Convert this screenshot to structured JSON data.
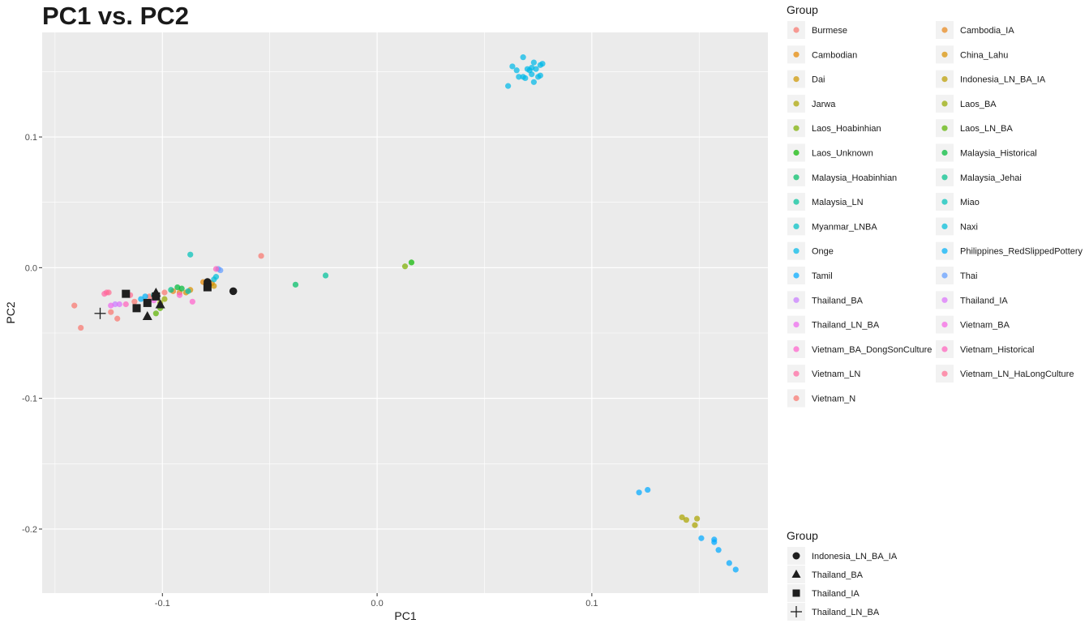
{
  "chart_data": {
    "type": "scatter",
    "title": "PC1 vs. PC2",
    "xlabel": "PC1",
    "ylabel": "PC2",
    "xlim": [
      -0.156,
      0.182
    ],
    "ylim": [
      -0.249,
      0.18
    ],
    "x_ticks": [
      -0.1,
      0.0,
      0.1
    ],
    "x_tick_labels": [
      "-0.1",
      "0.0",
      "0.1"
    ],
    "y_ticks": [
      -0.2,
      -0.1,
      0.0,
      0.1
    ],
    "y_tick_labels": [
      "-0.2",
      "-0.1",
      "0.0",
      "0.1"
    ],
    "x_minor": [
      -0.15,
      -0.05,
      0.05,
      0.15
    ],
    "y_minor": [
      -0.15,
      -0.05,
      0.05,
      0.15
    ],
    "panel_background": "#ebebeb",
    "grid_color": "#ffffff",
    "legend_color": {
      "title": "Group",
      "placement": "right",
      "columns": [
        [
          {
            "label": "Burmese",
            "color": "#F8766D"
          },
          {
            "label": "Cambodian",
            "color": "#E58700"
          },
          {
            "label": "Dai",
            "color": "#CD9600"
          },
          {
            "label": "Jarwa",
            "color": "#ABA300"
          },
          {
            "label": "Laos_Hoabinhian",
            "color": "#7CAE00"
          },
          {
            "label": "Laos_Unknown",
            "color": "#0CB702"
          },
          {
            "label": "Malaysia_Hoabinhian",
            "color": "#00BE67"
          },
          {
            "label": "Malaysia_LN",
            "color": "#00C19A"
          },
          {
            "label": "Myanmar_LNBA",
            "color": "#00BFC4"
          },
          {
            "label": "Onge",
            "color": "#00B8E7"
          },
          {
            "label": "Tamil",
            "color": "#00A9FF"
          },
          {
            "label": "Thailand_BA",
            "color": "#C77CFF"
          },
          {
            "label": "Thailand_LN_BA",
            "color": "#ED68ED"
          },
          {
            "label": "Vietnam_BA_DongSonCulture",
            "color": "#FF61CC"
          },
          {
            "label": "Vietnam_LN",
            "color": "#FF68A1"
          },
          {
            "label": "Vietnam_N",
            "color": "#F8766D"
          }
        ],
        [
          {
            "label": "Cambodia_IA",
            "color": "#E7861B"
          },
          {
            "label": "China_Lahu",
            "color": "#D89000"
          },
          {
            "label": "Indonesia_LN_BA_IA",
            "color": "#BB9D00"
          },
          {
            "label": "Laos_BA",
            "color": "#95A900"
          },
          {
            "label": "Laos_LN_BA",
            "color": "#5BB300"
          },
          {
            "label": "Malaysia_Historical",
            "color": "#00BA38"
          },
          {
            "label": "Malaysia_Jehai",
            "color": "#00C08B"
          },
          {
            "label": "Miao",
            "color": "#00C0B8"
          },
          {
            "label": "Naxi",
            "color": "#00BCD8"
          },
          {
            "label": "Philippines_RedSlippedPottery",
            "color": "#00B0F6"
          },
          {
            "label": "Thai",
            "color": "#619CFF"
          },
          {
            "label": "Thailand_IA",
            "color": "#DB72FB"
          },
          {
            "label": "Vietnam_BA",
            "color": "#F564E3"
          },
          {
            "label": "Vietnam_Historical",
            "color": "#FF62BC"
          },
          {
            "label": "Vietnam_LN_HaLongCulture",
            "color": "#FF6C91"
          }
        ]
      ]
    },
    "legend_shape": {
      "title": "Group",
      "placement": "bottom-right",
      "items": [
        {
          "label": "Indonesia_LN_BA_IA",
          "shape": "circle"
        },
        {
          "label": "Thailand_BA",
          "shape": "triangle"
        },
        {
          "label": "Thailand_IA",
          "shape": "square"
        },
        {
          "label": "Thailand_LN_BA",
          "shape": "cross"
        }
      ]
    },
    "series": [
      {
        "name": "Vietnam_N",
        "color": "#F8766D",
        "points": [
          [
            -0.141,
            -0.029
          ],
          [
            -0.138,
            -0.046
          ],
          [
            -0.124,
            -0.034
          ],
          [
            -0.121,
            -0.039
          ],
          [
            -0.054,
            0.009
          ]
        ]
      },
      {
        "name": "Burmese",
        "color": "#F8766D",
        "points": [
          [
            -0.113,
            -0.026
          ],
          [
            -0.106,
            -0.022
          ],
          [
            -0.099,
            -0.019
          ]
        ]
      },
      {
        "name": "Cambodia_IA",
        "color": "#E7861B",
        "points": [
          [
            -0.095,
            -0.018
          ],
          [
            -0.092,
            -0.019
          ]
        ]
      },
      {
        "name": "Cambodian",
        "color": "#E58700",
        "points": [
          [
            -0.081,
            -0.011
          ],
          [
            -0.077,
            -0.012
          ]
        ]
      },
      {
        "name": "China_Lahu",
        "color": "#D89000",
        "points": [
          [
            -0.089,
            -0.019
          ],
          [
            -0.087,
            -0.017
          ]
        ]
      },
      {
        "name": "Dai",
        "color": "#CD9600",
        "points": [
          [
            -0.079,
            -0.013
          ],
          [
            -0.076,
            -0.014
          ]
        ]
      },
      {
        "name": "Indonesia_LN_BA_IA",
        "color": "#BB9D00",
        "points": [
          [
            -0.067,
            -0.018
          ]
        ]
      },
      {
        "name": "Jarwa",
        "color": "#ABA300",
        "points": [
          [
            0.142,
            -0.191
          ],
          [
            0.144,
            -0.193
          ],
          [
            0.148,
            -0.197
          ],
          [
            0.149,
            -0.192
          ]
        ]
      },
      {
        "name": "Laos_BA",
        "color": "#95A900",
        "points": [
          [
            -0.101,
            -0.027
          ],
          [
            -0.099,
            -0.024
          ]
        ]
      },
      {
        "name": "Laos_Hoabinhian",
        "color": "#7CAE00",
        "points": [
          [
            0.013,
            0.001
          ]
        ]
      },
      {
        "name": "Laos_LN_BA",
        "color": "#5BB300",
        "points": [
          [
            -0.103,
            -0.035
          ],
          [
            -0.101,
            -0.031
          ]
        ]
      },
      {
        "name": "Laos_Unknown",
        "color": "#0CB702",
        "points": [
          [
            0.016,
            0.004
          ]
        ]
      },
      {
        "name": "Malaysia_Historical",
        "color": "#00BA38",
        "points": [
          [
            -0.093,
            -0.015
          ],
          [
            -0.091,
            -0.016
          ]
        ]
      },
      {
        "name": "Malaysia_Hoabinhian",
        "color": "#00BE67",
        "points": [
          [
            -0.038,
            -0.013
          ]
        ]
      },
      {
        "name": "Malaysia_Jehai",
        "color": "#00C08B",
        "points": [
          [
            -0.096,
            -0.017
          ]
        ]
      },
      {
        "name": "Malaysia_LN",
        "color": "#00C19A",
        "points": [
          [
            -0.024,
            -0.006
          ]
        ]
      },
      {
        "name": "Miao",
        "color": "#00C0B8",
        "points": [
          [
            -0.087,
            0.01
          ],
          [
            -0.088,
            -0.018
          ]
        ]
      },
      {
        "name": "Myanmar_LNBA",
        "color": "#00BFC4",
        "points": [
          [
            -0.104,
            -0.021
          ]
        ]
      },
      {
        "name": "Naxi",
        "color": "#00BCD8",
        "points": [
          [
            -0.076,
            -0.009
          ],
          [
            -0.075,
            -0.007
          ]
        ]
      },
      {
        "name": "Onge",
        "color": "#00B8E7",
        "points": [
          [
            0.063,
            0.154
          ],
          [
            0.065,
            0.151
          ],
          [
            0.066,
            0.146
          ],
          [
            0.068,
            0.161
          ],
          [
            0.068,
            0.146
          ],
          [
            0.069,
            0.145
          ],
          [
            0.07,
            0.152
          ],
          [
            0.071,
            0.151
          ],
          [
            0.072,
            0.148
          ],
          [
            0.073,
            0.157
          ],
          [
            0.073,
            0.142
          ],
          [
            0.074,
            0.152
          ],
          [
            0.075,
            0.146
          ],
          [
            0.076,
            0.155
          ],
          [
            0.076,
            0.147
          ],
          [
            0.077,
            0.156
          ],
          [
            0.061,
            0.139
          ],
          [
            0.072,
            0.153
          ]
        ]
      },
      {
        "name": "Philippines_RedSlippedPottery",
        "color": "#00B0F6",
        "points": [
          [
            -0.11,
            -0.024
          ],
          [
            -0.108,
            -0.022
          ]
        ]
      },
      {
        "name": "Tamil",
        "color": "#00A9FF",
        "points": [
          [
            0.122,
            -0.172
          ],
          [
            0.126,
            -0.17
          ],
          [
            0.151,
            -0.207
          ],
          [
            0.157,
            -0.208
          ],
          [
            0.157,
            -0.21
          ],
          [
            0.159,
            -0.216
          ],
          [
            0.164,
            -0.226
          ],
          [
            0.167,
            -0.231
          ]
        ]
      },
      {
        "name": "Thai",
        "color": "#619CFF",
        "points": [
          [
            -0.073,
            -0.002
          ],
          [
            -0.074,
            -0.001
          ]
        ]
      },
      {
        "name": "Thailand_BA",
        "color": "#C77CFF",
        "points": [
          [
            -0.122,
            -0.028
          ]
        ]
      },
      {
        "name": "Thailand_IA",
        "color": "#DB72FB",
        "points": [
          [
            -0.12,
            -0.028
          ]
        ]
      },
      {
        "name": "Thailand_LN_BA",
        "color": "#ED68ED",
        "points": [
          [
            -0.124,
            -0.029
          ]
        ]
      },
      {
        "name": "Vietnam_BA",
        "color": "#F564E3",
        "points": [
          [
            -0.104,
            -0.025
          ]
        ]
      },
      {
        "name": "Vietnam_BA_DongSonCulture",
        "color": "#FF61CC",
        "points": [
          [
            -0.086,
            -0.026
          ],
          [
            -0.092,
            -0.021
          ]
        ]
      },
      {
        "name": "Vietnam_Historical",
        "color": "#FF62BC",
        "points": [
          [
            -0.075,
            -0.001
          ],
          [
            -0.117,
            -0.028
          ]
        ]
      },
      {
        "name": "Vietnam_LN",
        "color": "#FF68A1",
        "points": [
          [
            -0.126,
            -0.019
          ],
          [
            -0.127,
            -0.02
          ]
        ]
      },
      {
        "name": "Vietnam_LN_HaLongCulture",
        "color": "#FF6C91",
        "points": [
          [
            -0.125,
            -0.019
          ],
          [
            -0.115,
            -0.021
          ]
        ]
      }
    ],
    "shape_series": [
      {
        "name": "Indonesia_LN_BA_IA",
        "shape": "circle",
        "points": [
          [
            -0.067,
            -0.018
          ],
          [
            -0.079,
            -0.011
          ]
        ]
      },
      {
        "name": "Thailand_BA",
        "shape": "triangle",
        "points": [
          [
            -0.107,
            -0.037
          ],
          [
            -0.103,
            -0.019
          ],
          [
            -0.101,
            -0.028
          ]
        ]
      },
      {
        "name": "Thailand_IA",
        "shape": "square",
        "points": [
          [
            -0.117,
            -0.02
          ],
          [
            -0.112,
            -0.031
          ],
          [
            -0.107,
            -0.027
          ],
          [
            -0.103,
            -0.022
          ],
          [
            -0.079,
            -0.015
          ]
        ]
      },
      {
        "name": "Thailand_LN_BA",
        "shape": "cross",
        "points": [
          [
            -0.129,
            -0.035
          ]
        ]
      }
    ]
  }
}
